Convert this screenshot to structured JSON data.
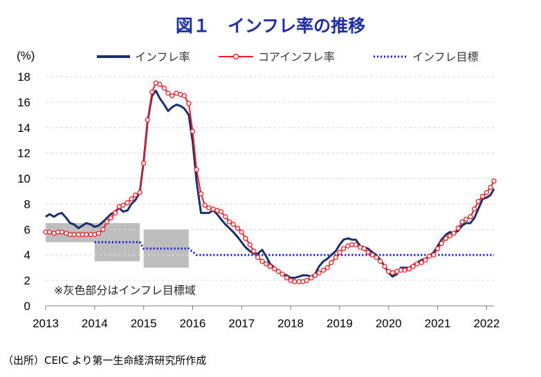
{
  "chart_data": {
    "type": "line",
    "title": "図１　インフレ率の推移",
    "ylabel": "(%)",
    "xlabel": "",
    "ylim": [
      0,
      18
    ],
    "yticks": [
      0,
      2,
      4,
      6,
      8,
      10,
      12,
      14,
      16,
      18
    ],
    "xlim": [
      2013.0,
      2022.15
    ],
    "xticks": [
      "2013",
      "2014",
      "2015",
      "2016",
      "2017",
      "2018",
      "2019",
      "2020",
      "2021",
      "2022"
    ],
    "grid": "horizontal dashed",
    "legend_position": "top",
    "note": "※灰色部分はインフレ目標域",
    "source": "（出所）CEIC より第一生命経済研究所作成",
    "series": [
      {
        "name": "インフレ率",
        "color": "#1a2f6b",
        "style": "solid",
        "points": [
          [
            2013.0,
            7.0
          ],
          [
            2013.08,
            7.2
          ],
          [
            2013.17,
            7.0
          ],
          [
            2013.25,
            7.2
          ],
          [
            2013.33,
            7.3
          ],
          [
            2013.42,
            6.9
          ],
          [
            2013.5,
            6.5
          ],
          [
            2013.58,
            6.4
          ],
          [
            2013.67,
            6.1
          ],
          [
            2013.75,
            6.3
          ],
          [
            2013.83,
            6.5
          ],
          [
            2013.92,
            6.4
          ],
          [
            2014.0,
            6.2
          ],
          [
            2014.08,
            6.3
          ],
          [
            2014.17,
            6.6
          ],
          [
            2014.25,
            6.9
          ],
          [
            2014.33,
            7.2
          ],
          [
            2014.42,
            7.4
          ],
          [
            2014.5,
            7.7
          ],
          [
            2014.58,
            7.4
          ],
          [
            2014.67,
            7.5
          ],
          [
            2014.75,
            8.0
          ],
          [
            2014.83,
            8.3
          ],
          [
            2014.92,
            8.9
          ],
          [
            2015.0,
            11.3
          ],
          [
            2015.08,
            14.5
          ],
          [
            2015.17,
            16.5
          ],
          [
            2015.25,
            16.9
          ],
          [
            2015.33,
            16.3
          ],
          [
            2015.42,
            15.8
          ],
          [
            2015.5,
            15.3
          ],
          [
            2015.58,
            15.6
          ],
          [
            2015.67,
            15.8
          ],
          [
            2015.75,
            15.7
          ],
          [
            2015.83,
            15.5
          ],
          [
            2015.92,
            15.0
          ],
          [
            2016.0,
            12.9
          ],
          [
            2016.08,
            9.8
          ],
          [
            2016.17,
            7.3
          ],
          [
            2016.25,
            7.3
          ],
          [
            2016.33,
            7.3
          ],
          [
            2016.42,
            7.5
          ],
          [
            2016.5,
            7.2
          ],
          [
            2016.58,
            6.8
          ],
          [
            2016.67,
            6.4
          ],
          [
            2016.75,
            6.1
          ],
          [
            2016.83,
            5.8
          ],
          [
            2016.92,
            5.4
          ],
          [
            2017.0,
            5.0
          ],
          [
            2017.08,
            4.6
          ],
          [
            2017.17,
            4.3
          ],
          [
            2017.25,
            4.1
          ],
          [
            2017.33,
            4.1
          ],
          [
            2017.42,
            4.4
          ],
          [
            2017.5,
            3.9
          ],
          [
            2017.58,
            3.3
          ],
          [
            2017.67,
            3.0
          ],
          [
            2017.75,
            2.7
          ],
          [
            2017.83,
            2.5
          ],
          [
            2017.92,
            2.4
          ],
          [
            2018.0,
            2.2
          ],
          [
            2018.08,
            2.2
          ],
          [
            2018.17,
            2.3
          ],
          [
            2018.25,
            2.4
          ],
          [
            2018.33,
            2.4
          ],
          [
            2018.42,
            2.3
          ],
          [
            2018.5,
            2.5
          ],
          [
            2018.58,
            3.1
          ],
          [
            2018.67,
            3.5
          ],
          [
            2018.75,
            3.7
          ],
          [
            2018.83,
            4.0
          ],
          [
            2018.92,
            4.3
          ],
          [
            2019.0,
            4.8
          ],
          [
            2019.08,
            5.2
          ],
          [
            2019.17,
            5.3
          ],
          [
            2019.25,
            5.2
          ],
          [
            2019.33,
            5.2
          ],
          [
            2019.42,
            4.7
          ],
          [
            2019.5,
            4.6
          ],
          [
            2019.58,
            4.5
          ],
          [
            2019.67,
            4.2
          ],
          [
            2019.75,
            4.0
          ],
          [
            2019.83,
            3.6
          ],
          [
            2019.92,
            3.1
          ],
          [
            2020.0,
            2.6
          ],
          [
            2020.08,
            2.3
          ],
          [
            2020.17,
            2.5
          ],
          [
            2020.25,
            3.0
          ],
          [
            2020.33,
            3.0
          ],
          [
            2020.42,
            3.0
          ],
          [
            2020.5,
            3.2
          ],
          [
            2020.58,
            3.4
          ],
          [
            2020.67,
            3.6
          ],
          [
            2020.75,
            3.7
          ],
          [
            2020.83,
            3.9
          ],
          [
            2020.92,
            4.2
          ],
          [
            2021.0,
            4.7
          ],
          [
            2021.08,
            5.2
          ],
          [
            2021.17,
            5.6
          ],
          [
            2021.25,
            5.8
          ],
          [
            2021.33,
            5.7
          ],
          [
            2021.42,
            5.9
          ],
          [
            2021.5,
            6.3
          ],
          [
            2021.58,
            6.5
          ],
          [
            2021.67,
            6.5
          ],
          [
            2021.75,
            6.9
          ],
          [
            2021.83,
            7.6
          ],
          [
            2021.92,
            8.4
          ],
          [
            2022.0,
            8.5
          ],
          [
            2022.08,
            8.7
          ],
          [
            2022.15,
            9.2
          ]
        ]
      },
      {
        "name": "コアインフレ率",
        "color": "#ee1c25",
        "style": "solid-with-circle-markers",
        "points": [
          [
            2013.0,
            5.8
          ],
          [
            2013.08,
            5.8
          ],
          [
            2013.17,
            5.7
          ],
          [
            2013.25,
            5.8
          ],
          [
            2013.33,
            5.8
          ],
          [
            2013.42,
            5.7
          ],
          [
            2013.5,
            5.6
          ],
          [
            2013.58,
            5.6
          ],
          [
            2013.67,
            5.6
          ],
          [
            2013.75,
            5.6
          ],
          [
            2013.83,
            5.6
          ],
          [
            2013.92,
            5.6
          ],
          [
            2014.0,
            5.6
          ],
          [
            2014.08,
            5.7
          ],
          [
            2014.17,
            6.0
          ],
          [
            2014.25,
            6.6
          ],
          [
            2014.33,
            6.9
          ],
          [
            2014.42,
            7.3
          ],
          [
            2014.5,
            7.8
          ],
          [
            2014.58,
            7.9
          ],
          [
            2014.67,
            8.1
          ],
          [
            2014.75,
            8.4
          ],
          [
            2014.83,
            8.7
          ],
          [
            2014.92,
            8.9
          ],
          [
            2015.0,
            11.2
          ],
          [
            2015.08,
            14.6
          ],
          [
            2015.17,
            16.8
          ],
          [
            2015.25,
            17.5
          ],
          [
            2015.33,
            17.4
          ],
          [
            2015.42,
            17.1
          ],
          [
            2015.5,
            16.7
          ],
          [
            2015.58,
            16.5
          ],
          [
            2015.67,
            16.7
          ],
          [
            2015.75,
            16.6
          ],
          [
            2015.83,
            16.5
          ],
          [
            2015.92,
            15.9
          ],
          [
            2016.0,
            13.7
          ],
          [
            2016.08,
            10.7
          ],
          [
            2016.17,
            8.8
          ],
          [
            2016.25,
            7.9
          ],
          [
            2016.33,
            7.7
          ],
          [
            2016.42,
            7.6
          ],
          [
            2016.5,
            7.5
          ],
          [
            2016.58,
            7.4
          ],
          [
            2016.67,
            7.0
          ],
          [
            2016.75,
            6.6
          ],
          [
            2016.83,
            6.4
          ],
          [
            2016.92,
            6.1
          ],
          [
            2017.0,
            5.8
          ],
          [
            2017.08,
            5.3
          ],
          [
            2017.17,
            4.8
          ],
          [
            2017.25,
            4.3
          ],
          [
            2017.33,
            3.8
          ],
          [
            2017.42,
            3.5
          ],
          [
            2017.5,
            3.3
          ],
          [
            2017.58,
            3.1
          ],
          [
            2017.67,
            2.9
          ],
          [
            2017.75,
            2.7
          ],
          [
            2017.83,
            2.5
          ],
          [
            2017.92,
            2.2
          ],
          [
            2018.0,
            2.0
          ],
          [
            2018.08,
            1.9
          ],
          [
            2018.17,
            1.9
          ],
          [
            2018.25,
            1.9
          ],
          [
            2018.33,
            2.0
          ],
          [
            2018.42,
            2.2
          ],
          [
            2018.5,
            2.4
          ],
          [
            2018.58,
            2.6
          ],
          [
            2018.67,
            2.8
          ],
          [
            2018.75,
            3.0
          ],
          [
            2018.83,
            3.4
          ],
          [
            2018.92,
            3.8
          ],
          [
            2019.0,
            4.2
          ],
          [
            2019.08,
            4.5
          ],
          [
            2019.17,
            4.7
          ],
          [
            2019.25,
            4.8
          ],
          [
            2019.33,
            4.8
          ],
          [
            2019.42,
            4.6
          ],
          [
            2019.5,
            4.5
          ],
          [
            2019.58,
            4.2
          ],
          [
            2019.67,
            4.0
          ],
          [
            2019.75,
            3.8
          ],
          [
            2019.83,
            3.5
          ],
          [
            2019.92,
            3.1
          ],
          [
            2020.0,
            2.7
          ],
          [
            2020.08,
            2.6
          ],
          [
            2020.17,
            2.7
          ],
          [
            2020.25,
            2.8
          ],
          [
            2020.33,
            2.8
          ],
          [
            2020.42,
            2.9
          ],
          [
            2020.5,
            3.1
          ],
          [
            2020.58,
            3.3
          ],
          [
            2020.67,
            3.4
          ],
          [
            2020.75,
            3.6
          ],
          [
            2020.83,
            3.9
          ],
          [
            2020.92,
            4.0
          ],
          [
            2021.0,
            4.5
          ],
          [
            2021.08,
            4.9
          ],
          [
            2021.17,
            5.3
          ],
          [
            2021.25,
            5.5
          ],
          [
            2021.33,
            5.7
          ],
          [
            2021.42,
            6.1
          ],
          [
            2021.5,
            6.6
          ],
          [
            2021.58,
            6.8
          ],
          [
            2021.67,
            7.0
          ],
          [
            2021.75,
            7.6
          ],
          [
            2021.83,
            8.2
          ],
          [
            2021.92,
            8.6
          ],
          [
            2022.0,
            8.9
          ],
          [
            2022.08,
            9.3
          ],
          [
            2022.15,
            9.8
          ]
        ]
      },
      {
        "name": "インフレ目標",
        "color": "#1010e0",
        "style": "dotted",
        "points": [
          [
            2014.0,
            5.0
          ],
          [
            2014.92,
            5.0
          ],
          [
            2015.0,
            4.5
          ],
          [
            2015.92,
            4.5
          ],
          [
            2016.08,
            4.0
          ],
          [
            2022.15,
            4.0
          ]
        ]
      }
    ],
    "target_band": {
      "name": "インフレ目標域",
      "color": "#bdbdbd",
      "ranges": [
        {
          "from": 2013.0,
          "to": 2014.0,
          "low": 5.0,
          "high": 6.5
        },
        {
          "from": 2014.0,
          "to": 2014.92,
          "low": 3.5,
          "high": 6.5
        },
        {
          "from": 2015.0,
          "to": 2015.92,
          "low": 3.0,
          "high": 6.0
        }
      ]
    }
  }
}
